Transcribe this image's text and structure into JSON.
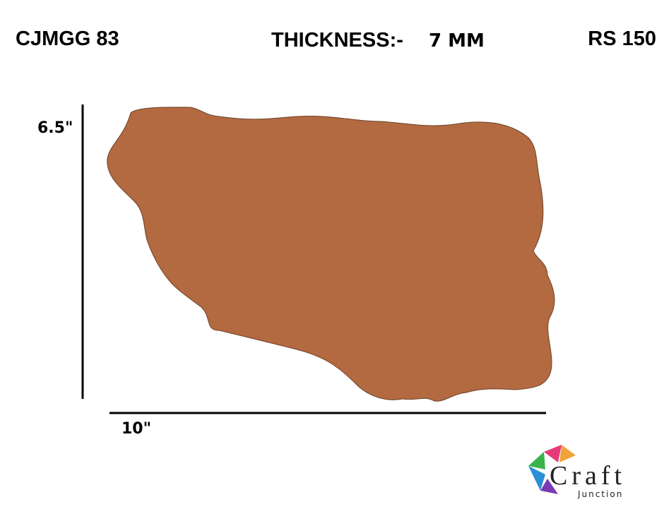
{
  "header": {
    "code": "CJMGG 83",
    "thickness_label": "THICKNESS:-",
    "thickness_value": "7 MM",
    "price": "RS 150"
  },
  "dimensions": {
    "height": "6.5\"",
    "width": "10\""
  },
  "logo": {
    "name": "Craft",
    "tagline": "Junction"
  }
}
